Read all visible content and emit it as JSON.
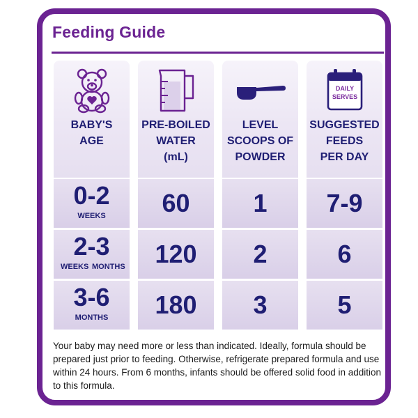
{
  "title": "Feeding Guide",
  "columns": [
    {
      "header_lines": [
        "BABY'S",
        "AGE"
      ],
      "icon": "teddy-bear-icon"
    },
    {
      "header_lines": [
        "PRE-BOILED",
        "WATER",
        "(mL)"
      ],
      "icon": "measuring-jug-icon"
    },
    {
      "header_lines": [
        "LEVEL",
        "SCOOPS OF",
        "POWDER"
      ],
      "icon": "scoop-icon"
    },
    {
      "header_lines": [
        "SUGGESTED",
        "FEEDS",
        "PER DAY"
      ],
      "icon": "calendar-icon",
      "icon_text": [
        "DAILY",
        "SERVES"
      ]
    }
  ],
  "rows": [
    {
      "age": "0-2",
      "age_unit_left": "WEEKS",
      "age_unit_right": "",
      "water": "60",
      "scoops": "1",
      "feeds": "7-9"
    },
    {
      "age": "2-3",
      "age_unit_left": "WEEKS",
      "age_unit_right": "MONTHS",
      "water": "120",
      "scoops": "2",
      "feeds": "6"
    },
    {
      "age": "3-6",
      "age_unit_left": "MONTHS",
      "age_unit_right": "",
      "water": "180",
      "scoops": "3",
      "feeds": "5"
    }
  ],
  "note": "Your baby may need more or less than indicated. Ideally, formula should be prepared just prior to feeding. Otherwise, refrigerate prepared formula and use within 24 hours. From 6 months, infants should be offered solid food in addition to this formula.",
  "colors": {
    "accent": "#6b2392",
    "text": "#1f1e73"
  }
}
